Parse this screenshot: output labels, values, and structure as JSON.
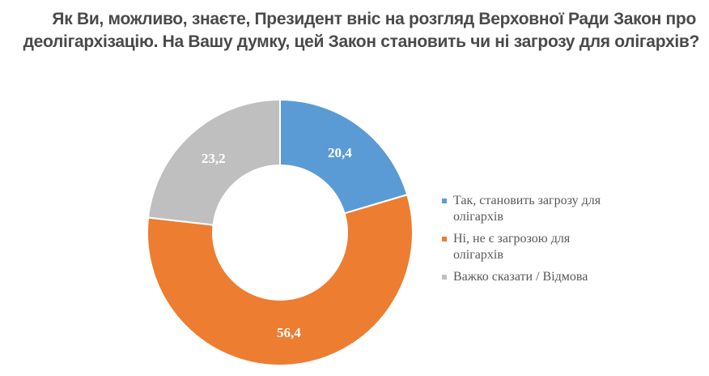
{
  "title": {
    "line1": "Як Ви, можливо, знаєте, Президент вніс на розгляд Верховної Ради Закон про",
    "line2": "деолігархізацію. На Вашу думку, цей Закон становить чи ні загрозу для олігархів?"
  },
  "legend": [
    {
      "line1": "Так, становить загрозу для",
      "line2": "олігархів",
      "color": "#5b9bd5"
    },
    {
      "line1": "Ні, не є загрозою для",
      "line2": "олігархів",
      "color": "#ed7d31"
    },
    {
      "line1": "Важко сказати / Відмова",
      "line2": "",
      "color": "#bfbfbf"
    }
  ],
  "chart_data": {
    "type": "pie",
    "variant": "doughnut",
    "title": "Як Ви, можливо, знаєте, Президент вніс на розгляд Верховної Ради Закон про деолігархізацію. На Вашу думку, цей Закон становить чи ні загрозу для олігархів?",
    "categories": [
      "Так, становить загрозу для олігархів",
      "Ні, не є загрозою для олігархів",
      "Важко сказати / Відмова"
    ],
    "values": [
      20.4,
      56.4,
      23.2
    ],
    "value_labels": [
      "20,4",
      "56,4",
      "23,2"
    ],
    "colors": [
      "#5b9bd5",
      "#ed7d31",
      "#bfbfbf"
    ],
    "start_angle": "12 o'clock, clockwise",
    "legend_position": "right",
    "unit": "%"
  }
}
